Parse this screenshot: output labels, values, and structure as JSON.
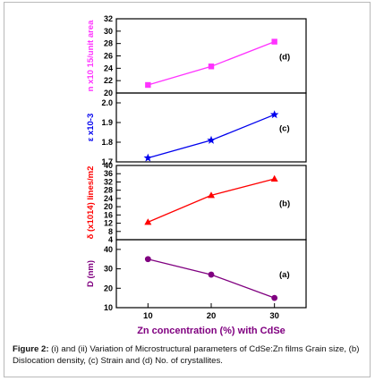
{
  "chart_data": {
    "type": "line",
    "x": [
      10,
      20,
      30
    ],
    "xlabel": "Zn concentration (%) with CdSe",
    "x_tick_labels": [
      "10",
      "20",
      "30"
    ],
    "xlim": [
      5,
      35
    ],
    "grid": false,
    "panels": [
      {
        "id": "d",
        "panel_label": "(d)",
        "ylabel": "n x10 15/unit area",
        "color": "#ff33ff",
        "marker": "square",
        "ylim": [
          20,
          32
        ],
        "yticks": [
          "20",
          "22",
          "24",
          "26",
          "28",
          "30",
          "32"
        ],
        "values": [
          21.3,
          24.3,
          28.3
        ]
      },
      {
        "id": "c",
        "panel_label": "(c)",
        "ylabel": "ε x10-3",
        "color": "#0000ee",
        "marker": "star",
        "ylim": [
          1.7,
          2.05
        ],
        "yticks": [
          "1.7",
          "1.8",
          "1.9",
          "2.0"
        ],
        "values": [
          1.72,
          1.81,
          1.94
        ]
      },
      {
        "id": "b",
        "panel_label": "(b)",
        "ylabel": "δ (x1014) lines/m2",
        "color": "#ff0000",
        "marker": "triangle",
        "ylim": [
          4,
          40
        ],
        "yticks": [
          "4",
          "8",
          "12",
          "16",
          "20",
          "24",
          "28",
          "32",
          "36",
          "40"
        ],
        "values": [
          12.5,
          25.5,
          33.5
        ]
      },
      {
        "id": "a",
        "panel_label": "(a)",
        "ylabel": "D (nm)",
        "color": "#800080",
        "marker": "circle",
        "ylim": [
          10,
          45
        ],
        "yticks": [
          "10",
          "20",
          "30",
          "40"
        ],
        "values": [
          35,
          27,
          15
        ]
      }
    ]
  },
  "caption": {
    "label": "Figure 2:",
    "text": " (i) and (ii) Variation of Microstructural parameters of CdSe:Zn films Grain size, (b) Dislocation density, (c) Strain and (d) No. of crystallites."
  }
}
